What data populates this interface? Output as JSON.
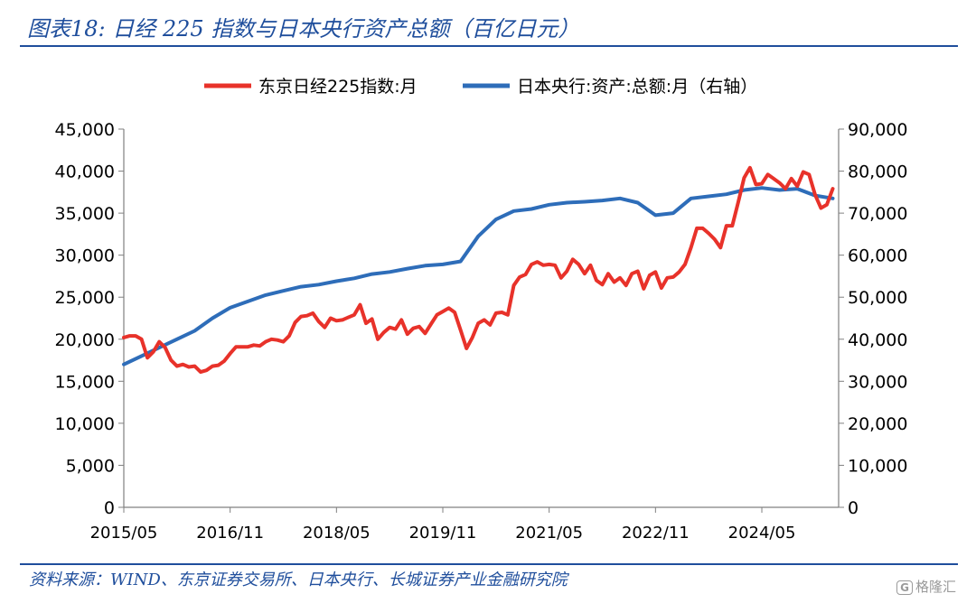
{
  "header": {
    "title": "图表18:  日经 225 指数与日本央行资产总额（百亿日元）"
  },
  "footer": {
    "source": "资料来源：WIND、东京证券交易所、日本央行、长城证券产业金融研究院"
  },
  "watermark": {
    "label": "格隆汇"
  },
  "chart_data": {
    "type": "line",
    "x_tick_labels": [
      "2015/05",
      "2016/11",
      "2018/05",
      "2019/11",
      "2021/05",
      "2022/11",
      "2024/05"
    ],
    "left_axis": {
      "ticks": [
        "0",
        "5,000",
        "10,000",
        "15,000",
        "20,000",
        "25,000",
        "30,000",
        "35,000",
        "40,000",
        "45,000"
      ],
      "ylim": [
        0,
        45000
      ]
    },
    "right_axis": {
      "ticks": [
        "0",
        "10,000",
        "20,000",
        "30,000",
        "40,000",
        "50,000",
        "60,000",
        "70,000",
        "80,000",
        "90,000"
      ],
      "ylim": [
        0,
        90000
      ]
    },
    "legend_position": "top-center",
    "grid": false,
    "series": [
      {
        "name": "东京日经225指数:月",
        "axis": "left",
        "color": "#e8322a",
        "points": [
          [
            "2015/05",
            20200
          ],
          [
            "2015/06",
            20400
          ],
          [
            "2015/07",
            20400
          ],
          [
            "2015/08",
            20000
          ],
          [
            "2015/09",
            17800
          ],
          [
            "2015/10",
            18500
          ],
          [
            "2015/11",
            19700
          ],
          [
            "2015/12",
            19000
          ],
          [
            "2016/01",
            17500
          ],
          [
            "2016/02",
            16800
          ],
          [
            "2016/03",
            17000
          ],
          [
            "2016/04",
            16700
          ],
          [
            "2016/05",
            16800
          ],
          [
            "2016/06",
            16100
          ],
          [
            "2016/07",
            16300
          ],
          [
            "2016/08",
            16800
          ],
          [
            "2016/09",
            16900
          ],
          [
            "2016/10",
            17400
          ],
          [
            "2016/11",
            18300
          ],
          [
            "2016/12",
            19100
          ],
          [
            "2017/01",
            19100
          ],
          [
            "2017/02",
            19100
          ],
          [
            "2017/03",
            19300
          ],
          [
            "2017/04",
            19200
          ],
          [
            "2017/05",
            19700
          ],
          [
            "2017/06",
            20000
          ],
          [
            "2017/07",
            19900
          ],
          [
            "2017/08",
            19700
          ],
          [
            "2017/09",
            20400
          ],
          [
            "2017/10",
            22000
          ],
          [
            "2017/11",
            22700
          ],
          [
            "2017/12",
            22800
          ],
          [
            "2018/01",
            23100
          ],
          [
            "2018/02",
            22100
          ],
          [
            "2018/03",
            21400
          ],
          [
            "2018/04",
            22500
          ],
          [
            "2018/05",
            22200
          ],
          [
            "2018/06",
            22300
          ],
          [
            "2018/07",
            22600
          ],
          [
            "2018/08",
            22900
          ],
          [
            "2018/09",
            24100
          ],
          [
            "2018/10",
            21900
          ],
          [
            "2018/11",
            22400
          ],
          [
            "2018/12",
            20000
          ],
          [
            "2019/01",
            20800
          ],
          [
            "2019/02",
            21400
          ],
          [
            "2019/03",
            21200
          ],
          [
            "2019/04",
            22300
          ],
          [
            "2019/05",
            20600
          ],
          [
            "2019/06",
            21300
          ],
          [
            "2019/07",
            21500
          ],
          [
            "2019/08",
            20700
          ],
          [
            "2019/09",
            21800
          ],
          [
            "2019/10",
            22900
          ],
          [
            "2019/11",
            23300
          ],
          [
            "2019/12",
            23700
          ],
          [
            "2020/01",
            23200
          ],
          [
            "2020/02",
            21100
          ],
          [
            "2020/03",
            18900
          ],
          [
            "2020/04",
            20200
          ],
          [
            "2020/05",
            21900
          ],
          [
            "2020/06",
            22300
          ],
          [
            "2020/07",
            21700
          ],
          [
            "2020/08",
            23100
          ],
          [
            "2020/09",
            23200
          ],
          [
            "2020/10",
            22900
          ],
          [
            "2020/11",
            26400
          ],
          [
            "2020/12",
            27400
          ],
          [
            "2021/01",
            27700
          ],
          [
            "2021/02",
            28900
          ],
          [
            "2021/03",
            29200
          ],
          [
            "2021/04",
            28800
          ],
          [
            "2021/05",
            28900
          ],
          [
            "2021/06",
            28800
          ],
          [
            "2021/07",
            27300
          ],
          [
            "2021/08",
            28100
          ],
          [
            "2021/09",
            29500
          ],
          [
            "2021/10",
            28900
          ],
          [
            "2021/11",
            27800
          ],
          [
            "2021/12",
            28800
          ],
          [
            "2022/01",
            27000
          ],
          [
            "2022/02",
            26500
          ],
          [
            "2022/03",
            27800
          ],
          [
            "2022/04",
            26800
          ],
          [
            "2022/05",
            27300
          ],
          [
            "2022/06",
            26400
          ],
          [
            "2022/07",
            27800
          ],
          [
            "2022/08",
            28100
          ],
          [
            "2022/09",
            26000
          ],
          [
            "2022/10",
            27600
          ],
          [
            "2022/11",
            28000
          ],
          [
            "2022/12",
            26100
          ],
          [
            "2023/01",
            27300
          ],
          [
            "2023/02",
            27400
          ],
          [
            "2023/03",
            28000
          ],
          [
            "2023/04",
            28900
          ],
          [
            "2023/05",
            30900
          ],
          [
            "2023/06",
            33200
          ],
          [
            "2023/07",
            33200
          ],
          [
            "2023/08",
            32600
          ],
          [
            "2023/09",
            31900
          ],
          [
            "2023/10",
            30900
          ],
          [
            "2023/11",
            33500
          ],
          [
            "2023/12",
            33500
          ],
          [
            "2024/01",
            36300
          ],
          [
            "2024/02",
            39200
          ],
          [
            "2024/03",
            40400
          ],
          [
            "2024/04",
            38400
          ],
          [
            "2024/05",
            38500
          ],
          [
            "2024/06",
            39600
          ],
          [
            "2024/07",
            39100
          ],
          [
            "2024/08",
            38600
          ],
          [
            "2024/09",
            37900
          ],
          [
            "2024/10",
            39100
          ],
          [
            "2024/11",
            38200
          ],
          [
            "2024/12",
            39900
          ],
          [
            "2025/01",
            39600
          ],
          [
            "2025/02",
            37200
          ],
          [
            "2025/03",
            35600
          ],
          [
            "2025/04",
            36000
          ],
          [
            "2025/05",
            37900
          ]
        ]
      },
      {
        "name": "日本央行:资产:总额:月（右轴）",
        "axis": "right",
        "color": "#2e6db9",
        "points": [
          [
            "2015/05",
            34000
          ],
          [
            "2015/08",
            36000
          ],
          [
            "2015/11",
            38000
          ],
          [
            "2016/02",
            40000
          ],
          [
            "2016/05",
            42000
          ],
          [
            "2016/08",
            45000
          ],
          [
            "2016/11",
            47500
          ],
          [
            "2017/02",
            49000
          ],
          [
            "2017/05",
            50500
          ],
          [
            "2017/08",
            51500
          ],
          [
            "2017/11",
            52500
          ],
          [
            "2018/02",
            53000
          ],
          [
            "2018/05",
            53800
          ],
          [
            "2018/08",
            54500
          ],
          [
            "2018/11",
            55500
          ],
          [
            "2019/02",
            56000
          ],
          [
            "2019/05",
            56800
          ],
          [
            "2019/08",
            57500
          ],
          [
            "2019/11",
            57800
          ],
          [
            "2020/02",
            58500
          ],
          [
            "2020/05",
            64500
          ],
          [
            "2020/08",
            68500
          ],
          [
            "2020/11",
            70500
          ],
          [
            "2021/02",
            71000
          ],
          [
            "2021/05",
            72000
          ],
          [
            "2021/08",
            72500
          ],
          [
            "2021/11",
            72700
          ],
          [
            "2022/02",
            73000
          ],
          [
            "2022/05",
            73500
          ],
          [
            "2022/08",
            72500
          ],
          [
            "2022/11",
            69500
          ],
          [
            "2023/02",
            70000
          ],
          [
            "2023/05",
            73500
          ],
          [
            "2023/08",
            74000
          ],
          [
            "2023/11",
            74500
          ],
          [
            "2024/02",
            75500
          ],
          [
            "2024/05",
            76000
          ],
          [
            "2024/08",
            75500
          ],
          [
            "2024/11",
            75800
          ],
          [
            "2025/02",
            74200
          ],
          [
            "2025/05",
            73500
          ]
        ]
      }
    ]
  }
}
